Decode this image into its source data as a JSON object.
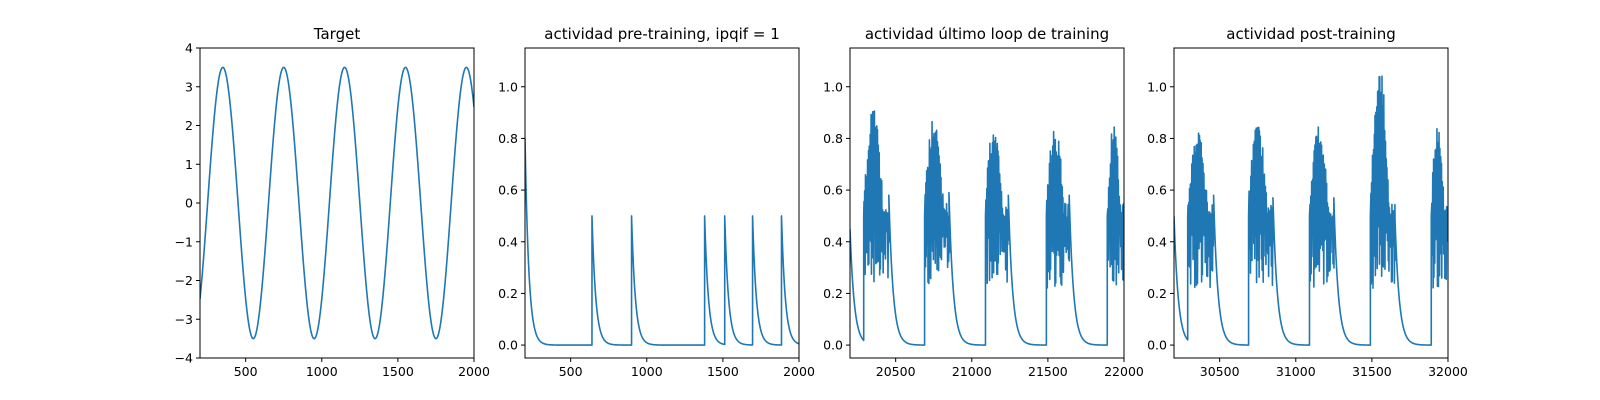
{
  "colors": {
    "line": "#1f77b4",
    "axes": "#000000",
    "background": "#ffffff"
  },
  "chart_data": [
    {
      "type": "line",
      "title": "Target",
      "xlabel": "",
      "ylabel": "",
      "xlim": [
        200,
        2000
      ],
      "ylim": [
        -4,
        4
      ],
      "xticks": [
        500,
        1000,
        1500,
        2000
      ],
      "yticks": [
        -4,
        -3,
        -2,
        -1,
        0,
        1,
        2,
        3,
        4
      ],
      "xtick_labels": [
        "500",
        "1000",
        "1500",
        "2000"
      ],
      "ytick_labels": [
        "−4",
        "−3",
        "−2",
        "−1",
        "0",
        "1",
        "2",
        "3",
        "4"
      ],
      "grid": false,
      "series": [
        {
          "signal": "sine",
          "amplitude": 3.5,
          "period": 400,
          "peak_x": [
            350,
            750,
            1150,
            1550,
            1950
          ],
          "trough_x": [
            550,
            950,
            1350,
            1750
          ],
          "x_start": 200,
          "x_end": 2000,
          "y_start": -2.8,
          "y_end": 2.7
        }
      ]
    },
    {
      "type": "line",
      "title": "actividad pre-training, ipqif = 1",
      "xlabel": "",
      "ylabel": "",
      "xlim": [
        200,
        2000
      ],
      "ylim": [
        -0.05,
        1.15
      ],
      "xticks": [
        500,
        1000,
        1500,
        2000
      ],
      "yticks": [
        0.0,
        0.2,
        0.4,
        0.6,
        0.8,
        1.0
      ],
      "xtick_labels": [
        "500",
        "1000",
        "1500",
        "2000"
      ],
      "ytick_labels": [
        "0.0",
        "0.2",
        "0.4",
        "0.6",
        "0.8",
        "1.0"
      ],
      "grid": false,
      "series": [
        {
          "signal": "decaying-spikes",
          "x_start": 200,
          "x_end": 2000,
          "initial_value": 0.8,
          "spike_times": [
            640,
            900,
            1380,
            1512,
            1695,
            1885
          ],
          "spike_heights": [
            0.5,
            0.5,
            0.5,
            0.5,
            0.5,
            0.5
          ]
        }
      ]
    },
    {
      "type": "line",
      "title": "actividad último loop de training",
      "xlabel": "",
      "ylabel": "",
      "xlim": [
        20200,
        22000
      ],
      "ylim": [
        -0.05,
        1.15
      ],
      "xticks": [
        20500,
        21000,
        21500,
        22000
      ],
      "yticks": [
        0.0,
        0.2,
        0.4,
        0.6,
        0.8,
        1.0
      ],
      "xtick_labels": [
        "20500",
        "21000",
        "21500",
        "22000"
      ],
      "ytick_labels": [
        "0.0",
        "0.2",
        "0.4",
        "0.6",
        "0.8",
        "1.0"
      ],
      "grid": false,
      "series": [
        {
          "signal": "bursts",
          "x_start": 20200,
          "x_end": 22000,
          "initial_value": 0.45,
          "bursts": [
            {
              "start": 20290,
              "end": 20455,
              "peak": 0.93,
              "cut": 0.58
            },
            {
              "start": 20690,
              "end": 20850,
              "peak": 0.9,
              "cut": 0.59
            },
            {
              "start": 21090,
              "end": 21240,
              "peak": 0.86,
              "cut": 0.58
            },
            {
              "start": 21490,
              "end": 21640,
              "peak": 0.85,
              "cut": 0.58
            },
            {
              "start": 21890,
              "end": 22000,
              "peak": 0.86,
              "cut": null
            }
          ]
        }
      ]
    },
    {
      "type": "line",
      "title": "actividad post-training",
      "xlabel": "",
      "ylabel": "",
      "xlim": [
        30200,
        32000
      ],
      "ylim": [
        -0.05,
        1.15
      ],
      "xticks": [
        30500,
        31000,
        31500,
        32000
      ],
      "yticks": [
        0.0,
        0.2,
        0.4,
        0.6,
        0.8,
        1.0
      ],
      "xtick_labels": [
        "30500",
        "31000",
        "31500",
        "32000"
      ],
      "ytick_labels": [
        "0.0",
        "0.2",
        "0.4",
        "0.6",
        "0.8",
        "1.0"
      ],
      "grid": false,
      "series": [
        {
          "signal": "bursts",
          "x_start": 30200,
          "x_end": 32000,
          "initial_value": 0.5,
          "bursts": [
            {
              "start": 30290,
              "end": 30460,
              "peak": 0.83,
              "cut": 0.58
            },
            {
              "start": 30690,
              "end": 30850,
              "peak": 0.86,
              "cut": 0.57
            },
            {
              "start": 31090,
              "end": 31250,
              "peak": 0.85,
              "cut": 0.57
            },
            {
              "start": 31490,
              "end": 31650,
              "peak": 1.1,
              "cut": 0.52
            },
            {
              "start": 31890,
              "end": 32000,
              "peak": 0.87,
              "cut": null
            }
          ]
        }
      ]
    }
  ]
}
